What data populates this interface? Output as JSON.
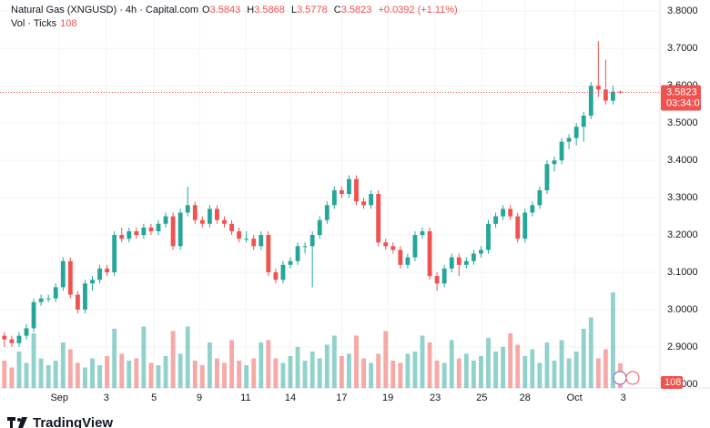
{
  "chart_data": {
    "type": "candlestick",
    "header": {
      "symbol": "Natural Gas (XNGUSD) · 4h · Capital.com",
      "o_label": "O",
      "h_label": "H",
      "l_label": "L",
      "c_label": "C",
      "change": "+0.0392 (+1.11%)",
      "vol_label": "Vol · Ticks"
    },
    "countdown": "03:34:07",
    "logo_text": "TradingView",
    "up_color": "#26a69a",
    "down_color": "#ef5350",
    "candles": [
      [
        2.93,
        2.94,
        2.9,
        2.92
      ],
      [
        2.92,
        2.93,
        2.9,
        2.91
      ],
      [
        2.91,
        2.94,
        2.9,
        2.93
      ],
      [
        2.93,
        2.96,
        2.92,
        2.95
      ],
      [
        2.95,
        3.03,
        2.94,
        3.02
      ],
      [
        3.02,
        3.04,
        3.01,
        3.03
      ],
      [
        3.03,
        3.04,
        3.02,
        3.03
      ],
      [
        3.03,
        3.07,
        3.02,
        3.06
      ],
      [
        3.06,
        3.14,
        3.05,
        3.13
      ],
      [
        3.13,
        3.14,
        3.03,
        3.04
      ],
      [
        3.04,
        3.05,
        2.99,
        3.0
      ],
      [
        3.0,
        3.08,
        2.99,
        3.07
      ],
      [
        3.07,
        3.09,
        3.05,
        3.08
      ],
      [
        3.08,
        3.12,
        3.07,
        3.11
      ],
      [
        3.11,
        3.12,
        3.09,
        3.1
      ],
      [
        3.1,
        3.21,
        3.09,
        3.2
      ],
      [
        3.2,
        3.22,
        3.18,
        3.19
      ],
      [
        3.19,
        3.22,
        3.18,
        3.21
      ],
      [
        3.21,
        3.22,
        3.19,
        3.2
      ],
      [
        3.2,
        3.23,
        3.19,
        3.22
      ],
      [
        3.22,
        3.23,
        3.2,
        3.21
      ],
      [
        3.21,
        3.24,
        3.2,
        3.23
      ],
      [
        3.23,
        3.26,
        3.22,
        3.25
      ],
      [
        3.25,
        3.26,
        3.16,
        3.17
      ],
      [
        3.17,
        3.27,
        3.16,
        3.26
      ],
      [
        3.26,
        3.33,
        3.25,
        3.28
      ],
      [
        3.28,
        3.29,
        3.23,
        3.24
      ],
      [
        3.24,
        3.25,
        3.22,
        3.23
      ],
      [
        3.23,
        3.28,
        3.22,
        3.27
      ],
      [
        3.27,
        3.28,
        3.23,
        3.24
      ],
      [
        3.24,
        3.25,
        3.22,
        3.23
      ],
      [
        3.23,
        3.24,
        3.2,
        3.21
      ],
      [
        3.21,
        3.22,
        3.18,
        3.19
      ],
      [
        3.19,
        3.21,
        3.18,
        3.19
      ],
      [
        3.19,
        3.2,
        3.16,
        3.17
      ],
      [
        3.17,
        3.21,
        3.16,
        3.2
      ],
      [
        3.2,
        3.21,
        3.09,
        3.1
      ],
      [
        3.1,
        3.11,
        3.07,
        3.08
      ],
      [
        3.08,
        3.13,
        3.07,
        3.12
      ],
      [
        3.12,
        3.14,
        3.11,
        3.13
      ],
      [
        3.13,
        3.18,
        3.12,
        3.17
      ],
      [
        3.17,
        3.18,
        3.15,
        3.17
      ],
      [
        3.17,
        3.21,
        3.06,
        3.2
      ],
      [
        3.2,
        3.25,
        3.19,
        3.24
      ],
      [
        3.24,
        3.29,
        3.23,
        3.28
      ],
      [
        3.28,
        3.33,
        3.27,
        3.32
      ],
      [
        3.32,
        3.33,
        3.3,
        3.31
      ],
      [
        3.31,
        3.36,
        3.3,
        3.35
      ],
      [
        3.35,
        3.36,
        3.28,
        3.29
      ],
      [
        3.29,
        3.3,
        3.27,
        3.28
      ],
      [
        3.28,
        3.32,
        3.27,
        3.31
      ],
      [
        3.31,
        3.32,
        3.17,
        3.18
      ],
      [
        3.18,
        3.19,
        3.16,
        3.17
      ],
      [
        3.17,
        3.18,
        3.15,
        3.16
      ],
      [
        3.16,
        3.17,
        3.11,
        3.12
      ],
      [
        3.12,
        3.15,
        3.11,
        3.14
      ],
      [
        3.14,
        3.21,
        3.13,
        3.2
      ],
      [
        3.2,
        3.22,
        3.19,
        3.21
      ],
      [
        3.21,
        3.22,
        3.08,
        3.09
      ],
      [
        3.09,
        3.1,
        3.05,
        3.07
      ],
      [
        3.07,
        3.12,
        3.06,
        3.11
      ],
      [
        3.11,
        3.15,
        3.1,
        3.14
      ],
      [
        3.14,
        3.15,
        3.09,
        3.12
      ],
      [
        3.12,
        3.14,
        3.11,
        3.13
      ],
      [
        3.13,
        3.16,
        3.12,
        3.15
      ],
      [
        3.15,
        3.17,
        3.14,
        3.16
      ],
      [
        3.16,
        3.24,
        3.15,
        3.23
      ],
      [
        3.23,
        3.26,
        3.22,
        3.25
      ],
      [
        3.25,
        3.28,
        3.24,
        3.27
      ],
      [
        3.27,
        3.28,
        3.24,
        3.25
      ],
      [
        3.25,
        3.26,
        3.18,
        3.19
      ],
      [
        3.19,
        3.27,
        3.18,
        3.26
      ],
      [
        3.26,
        3.29,
        3.25,
        3.28
      ],
      [
        3.28,
        3.33,
        3.27,
        3.32
      ],
      [
        3.32,
        3.4,
        3.31,
        3.39
      ],
      [
        3.39,
        3.41,
        3.37,
        3.4
      ],
      [
        3.4,
        3.46,
        3.39,
        3.45
      ],
      [
        3.45,
        3.47,
        3.43,
        3.46
      ],
      [
        3.46,
        3.5,
        3.44,
        3.49
      ],
      [
        3.49,
        3.53,
        3.45,
        3.52
      ],
      [
        3.52,
        3.61,
        3.51,
        3.6
      ],
      [
        3.6,
        3.72,
        3.57,
        3.59
      ],
      [
        3.59,
        3.67,
        3.55,
        3.56
      ],
      [
        3.56,
        3.6,
        3.55,
        3.5843
      ],
      [
        3.5843,
        3.5868,
        3.5778,
        3.5823
      ]
    ],
    "volume": [
      120,
      90,
      160,
      110,
      240,
      130,
      100,
      120,
      200,
      170,
      110,
      90,
      130,
      100,
      140,
      260,
      150,
      120,
      130,
      270,
      110,
      100,
      140,
      250,
      150,
      270,
      120,
      100,
      200,
      130,
      110,
      210,
      120,
      100,
      130,
      200,
      210,
      130,
      110,
      140,
      180,
      120,
      160,
      130,
      190,
      230,
      140,
      150,
      230,
      130,
      110,
      150,
      250,
      120,
      110,
      150,
      160,
      230,
      200,
      120,
      110,
      210,
      130,
      150,
      120,
      140,
      220,
      160,
      180,
      240,
      190,
      140,
      170,
      110,
      200,
      120,
      210,
      130,
      160,
      260,
      310,
      130,
      170,
      420,
      108
    ],
    "xlim": [
      -0.6,
      89.4
    ],
    "ylim": [
      2.79,
      3.83
    ],
    "yticks": [
      {
        "value": 2.8,
        "label": "2.8000"
      },
      {
        "value": 2.9,
        "label": "2.9000"
      },
      {
        "value": 3.0,
        "label": "3.0000"
      },
      {
        "value": 3.1,
        "label": "3.1000"
      },
      {
        "value": 3.2,
        "label": "3.2000"
      },
      {
        "value": 3.3,
        "label": "3.3000"
      },
      {
        "value": 3.4,
        "label": "3.4000"
      },
      {
        "value": 3.5,
        "label": "3.5000"
      },
      {
        "value": 3.6,
        "label": "3.6000"
      },
      {
        "value": 3.7,
        "label": "3.7000"
      },
      {
        "value": 3.8,
        "label": "3.8000"
      }
    ],
    "xticks": [
      {
        "value": 7.5,
        "label": "Sep"
      },
      {
        "value": 13.9,
        "label": "3"
      },
      {
        "value": 20.4,
        "label": "5"
      },
      {
        "value": 26.6,
        "label": "9"
      },
      {
        "value": 32.9,
        "label": "11"
      },
      {
        "value": 39,
        "label": "14"
      },
      {
        "value": 46,
        "label": "17"
      },
      {
        "value": 52.3,
        "label": "19"
      },
      {
        "value": 58.75,
        "label": "23"
      },
      {
        "value": 65.1,
        "label": "25"
      },
      {
        "value": 71,
        "label": "28"
      },
      {
        "value": 77.75,
        "label": "Oct"
      },
      {
        "value": 84.4,
        "label": "3"
      }
    ],
    "grid": true
  }
}
